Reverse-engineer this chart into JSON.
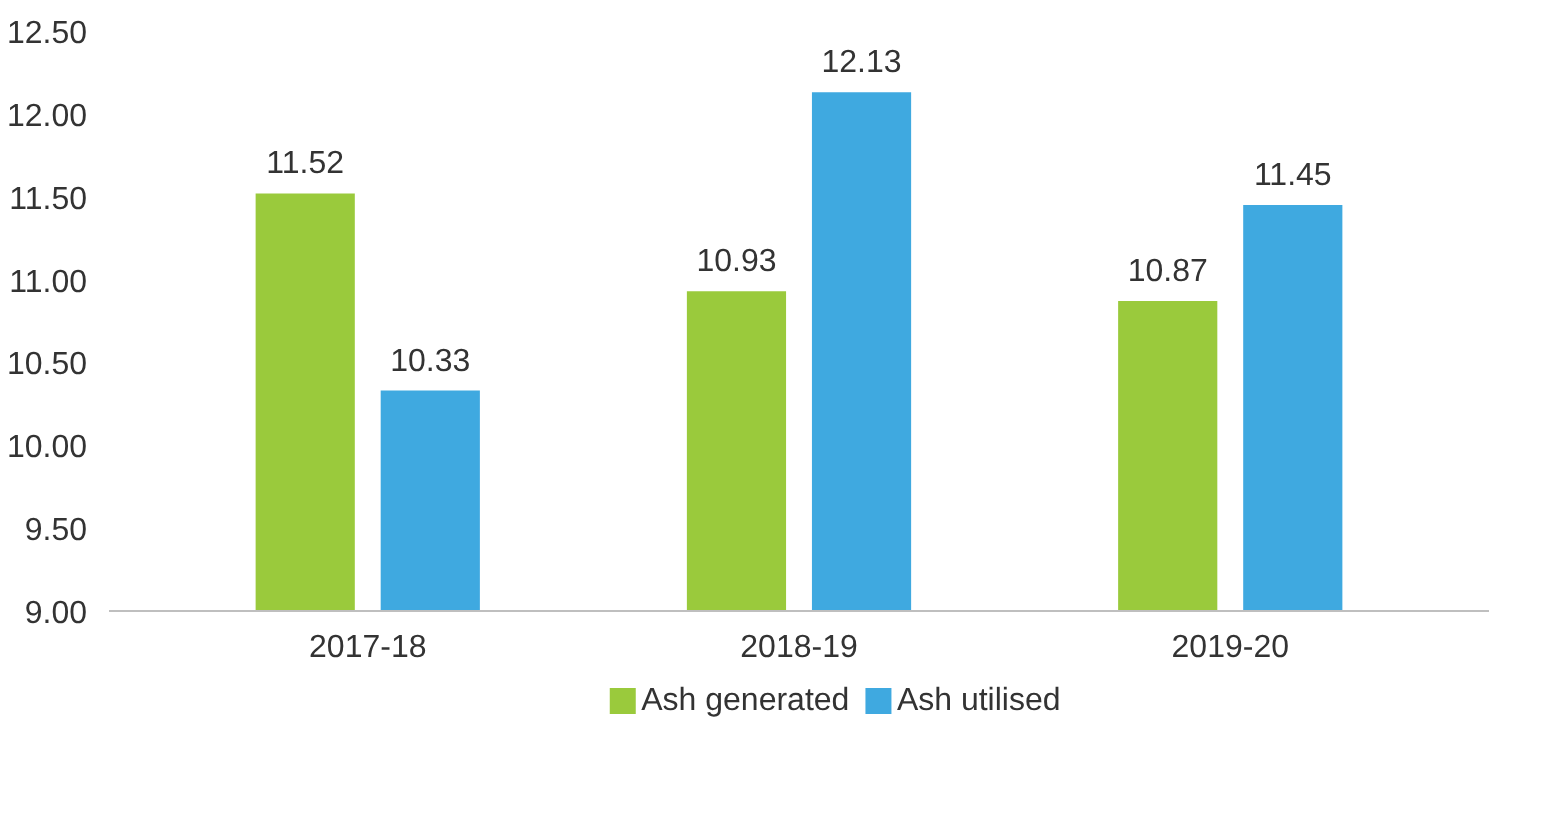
{
  "chart_data": {
    "type": "bar",
    "categories": [
      "2017-18",
      "2018-19",
      "2019-20"
    ],
    "series": [
      {
        "name": "Ash generated",
        "color": "#9aca3c",
        "values": [
          11.52,
          10.93,
          10.87
        ]
      },
      {
        "name": "Ash utilised",
        "color": "#3fa9e0",
        "values": [
          10.33,
          12.13,
          11.45
        ]
      }
    ],
    "ylim": [
      9,
      12.5
    ],
    "yticks": [
      {
        "value": 9,
        "label": "9.00"
      },
      {
        "value": 9.5,
        "label": "9.50"
      },
      {
        "value": 10,
        "label": "10.00"
      },
      {
        "value": 10.5,
        "label": "10.50"
      },
      {
        "value": 11,
        "label": "11.00"
      },
      {
        "value": 11.5,
        "label": "11.50"
      },
      {
        "value": 12,
        "label": "12.00"
      },
      {
        "value": 12.5,
        "label": "12.50"
      }
    ],
    "data_labels": true,
    "grid": false,
    "legend": "bottom"
  }
}
